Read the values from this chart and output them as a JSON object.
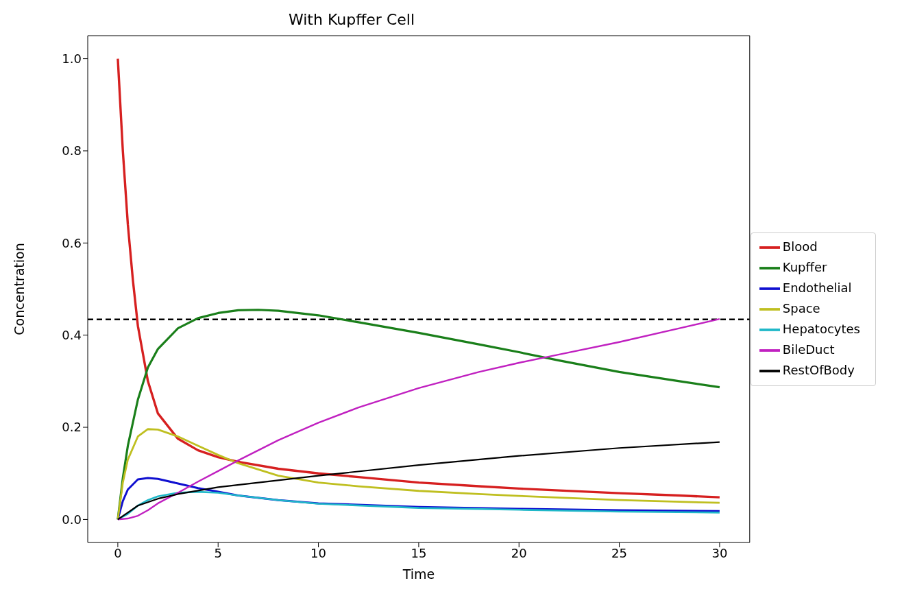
{
  "chart_data": {
    "type": "line",
    "title": "With Kupffer Cell",
    "xlabel": "Time",
    "ylabel": "Concentration",
    "xlim": [
      -1.5,
      31.5
    ],
    "ylim": [
      -0.05,
      1.05
    ],
    "xticks": [
      0,
      5,
      10,
      15,
      20,
      25,
      30
    ],
    "yticks": [
      {
        "value": 0,
        "label": "0.0"
      },
      0.2,
      0.4,
      0.6,
      0.8,
      {
        "value": 1,
        "label": "1.0"
      }
    ],
    "grid": false,
    "legend": "right",
    "marker": "none",
    "line_style": "solid",
    "ref_lines": [
      {
        "axis": "y",
        "value": 0.434,
        "color": "#000000",
        "line_style": "dashed"
      }
    ],
    "series": [
      {
        "name": "Blood",
        "color": "#d62020",
        "x": [
          0,
          0.25,
          0.5,
          0.75,
          1,
          1.5,
          2,
          3,
          4,
          5,
          6,
          8,
          10,
          12,
          15,
          18,
          20,
          22,
          25,
          28,
          30
        ],
        "values": [
          1.0,
          0.8,
          0.64,
          0.52,
          0.42,
          0.3,
          0.23,
          0.175,
          0.15,
          0.135,
          0.125,
          0.11,
          0.1,
          0.092,
          0.08,
          0.072,
          0.067,
          0.063,
          0.057,
          0.052,
          0.048
        ]
      },
      {
        "name": "Kupffer",
        "color": "#1a7f1a",
        "x": [
          0,
          0.25,
          0.5,
          1,
          1.5,
          2,
          3,
          4,
          5,
          6,
          7,
          8,
          10,
          12,
          15,
          18,
          20,
          22,
          25,
          28,
          30
        ],
        "values": [
          0,
          0.09,
          0.16,
          0.26,
          0.33,
          0.37,
          0.415,
          0.437,
          0.448,
          0.454,
          0.455,
          0.453,
          0.443,
          0.428,
          0.405,
          0.38,
          0.363,
          0.345,
          0.32,
          0.3,
          0.287
        ]
      },
      {
        "name": "Endothelial",
        "color": "#1010d0",
        "x": [
          0,
          0.25,
          0.5,
          1,
          1.5,
          2,
          3,
          4,
          5,
          6,
          8,
          10,
          15,
          20,
          25,
          30
        ],
        "values": [
          0,
          0.04,
          0.065,
          0.087,
          0.09,
          0.088,
          0.078,
          0.068,
          0.06,
          0.052,
          0.042,
          0.035,
          0.027,
          0.023,
          0.02,
          0.018
        ]
      },
      {
        "name": "Space",
        "color": "#bfbf20",
        "x": [
          0,
          0.25,
          0.5,
          1,
          1.5,
          2,
          3,
          4,
          5,
          6,
          8,
          10,
          12,
          15,
          18,
          20,
          25,
          30
        ],
        "values": [
          0,
          0.08,
          0.13,
          0.18,
          0.196,
          0.195,
          0.18,
          0.16,
          0.14,
          0.122,
          0.095,
          0.08,
          0.072,
          0.062,
          0.055,
          0.051,
          0.042,
          0.036
        ]
      },
      {
        "name": "Hepatocytes",
        "color": "#20b8c8",
        "x": [
          0,
          0.5,
          1,
          1.5,
          2,
          3,
          4,
          5,
          6,
          8,
          10,
          15,
          20,
          25,
          30
        ],
        "values": [
          0,
          0.012,
          0.03,
          0.042,
          0.05,
          0.058,
          0.06,
          0.058,
          0.052,
          0.042,
          0.034,
          0.025,
          0.021,
          0.017,
          0.015
        ]
      },
      {
        "name": "BileDuct",
        "color": "#c020c0",
        "x": [
          0,
          0.5,
          1,
          1.5,
          2,
          3,
          4,
          5,
          6,
          8,
          10,
          12,
          15,
          18,
          20,
          22,
          25,
          28,
          30
        ],
        "values": [
          0,
          0.002,
          0.008,
          0.02,
          0.035,
          0.058,
          0.082,
          0.105,
          0.128,
          0.172,
          0.21,
          0.243,
          0.285,
          0.32,
          0.34,
          0.358,
          0.385,
          0.415,
          0.435
        ]
      },
      {
        "name": "RestOfBody",
        "color": "#000000",
        "x": [
          0,
          0.5,
          1,
          2,
          3,
          5,
          10,
          15,
          20,
          25,
          30
        ],
        "values": [
          0,
          0.015,
          0.03,
          0.045,
          0.055,
          0.07,
          0.095,
          0.118,
          0.138,
          0.155,
          0.168
        ]
      }
    ]
  }
}
